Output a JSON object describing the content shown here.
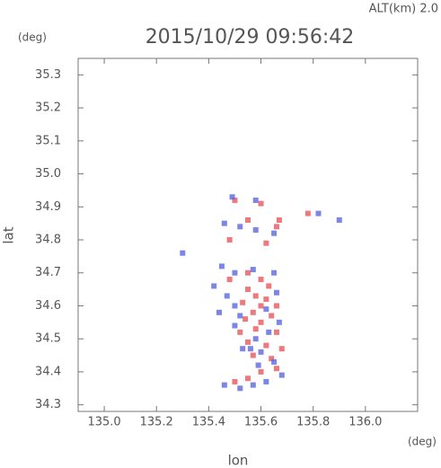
{
  "chart_data": {
    "type": "scatter",
    "header": "ALT(km) 2.0",
    "title": "2015/10/29 09:56:42",
    "ylabel": "lat",
    "ylabel_unit": "(deg)",
    "xlabel": "lon",
    "xlabel_unit": "(deg)",
    "xlim": [
      134.9,
      136.2
    ],
    "ylim": [
      34.28,
      35.35
    ],
    "xticks": [
      {
        "value": 135,
        "label": "135.0"
      },
      135.2,
      135.4,
      135.6,
      135.8,
      {
        "value": 136,
        "label": "136.0"
      }
    ],
    "yticks": [
      35.3,
      35.2,
      35.1,
      {
        "value": 35,
        "label": "35.0"
      },
      34.9,
      34.8,
      34.7,
      34.6,
      34.5,
      34.4,
      34.3
    ],
    "series": [
      {
        "color": "#e8575c",
        "x": [
          135.5,
          135.6,
          135.67,
          135.78,
          135.55,
          135.48,
          135.62,
          135.66,
          135.55,
          135.6,
          135.63,
          135.55,
          135.58,
          135.62,
          135.53,
          135.6,
          135.57,
          135.64,
          135.54,
          135.6,
          135.58,
          135.66,
          135.55,
          135.62,
          135.68,
          135.57,
          135.64,
          135.6,
          135.66,
          135.5,
          135.55,
          135.48,
          135.66,
          135.52
        ],
        "y": [
          34.92,
          34.91,
          34.86,
          34.88,
          34.86,
          34.8,
          34.79,
          34.84,
          34.7,
          34.68,
          34.66,
          34.65,
          34.63,
          34.62,
          34.61,
          34.6,
          34.58,
          34.57,
          34.56,
          34.55,
          34.53,
          34.52,
          34.49,
          34.48,
          34.47,
          34.45,
          34.44,
          34.4,
          34.41,
          34.37,
          34.38,
          34.68,
          34.6,
          34.52
        ]
      },
      {
        "color": "#5a68e0",
        "x": [
          135.49,
          135.58,
          135.46,
          135.52,
          135.58,
          135.65,
          135.9,
          135.82,
          135.45,
          135.5,
          135.57,
          135.65,
          135.42,
          135.47,
          135.5,
          135.66,
          135.44,
          135.52,
          135.62,
          135.67,
          135.5,
          135.58,
          135.53,
          135.6,
          135.65,
          135.59,
          135.68,
          135.62,
          135.46,
          135.52,
          135.57,
          135.3,
          135.56,
          135.63
        ],
        "y": [
          34.93,
          34.92,
          34.85,
          34.84,
          34.83,
          34.82,
          34.86,
          34.88,
          34.72,
          34.7,
          34.71,
          34.7,
          34.66,
          34.63,
          34.6,
          34.64,
          34.58,
          34.57,
          34.59,
          34.55,
          34.54,
          34.5,
          34.47,
          34.46,
          34.43,
          34.42,
          34.39,
          34.37,
          34.36,
          34.35,
          34.36,
          34.76,
          34.47,
          34.52
        ]
      }
    ]
  }
}
